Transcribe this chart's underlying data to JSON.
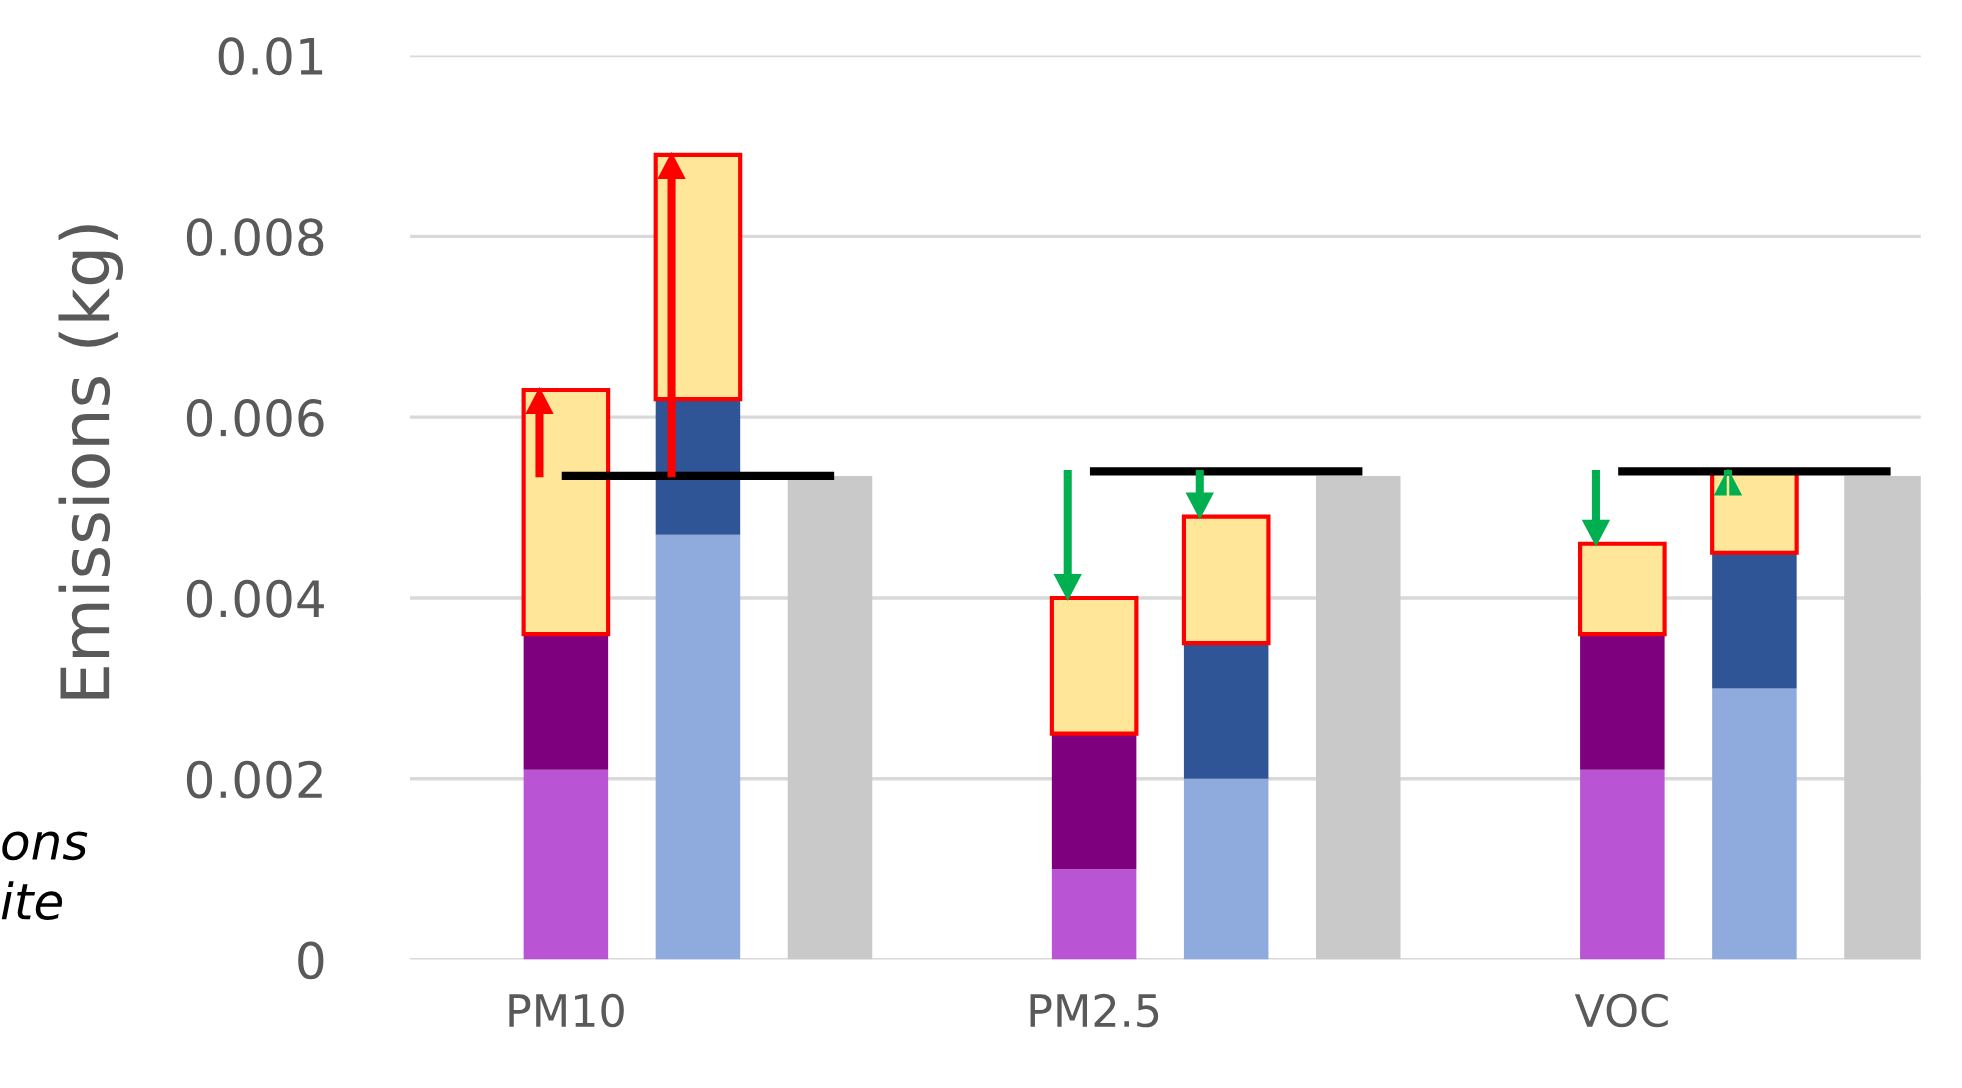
{
  "chart_data": {
    "type": "bar",
    "stacked": true,
    "ylabel": "Emissions (kg)",
    "categories": [
      "PM10",
      null,
      null,
      null,
      "PM2.5",
      null,
      null,
      null,
      "VOC",
      null,
      null
    ],
    "series": [
      {
        "values": [
          0.0021,
          0.0047,
          0.00535,
          null,
          0.001,
          0.002,
          0.00535,
          null,
          0.0021,
          0.003,
          0.00535
        ],
        "colors": [
          "#b955d4",
          "#8faadc",
          "#c9c9c9",
          null,
          "#b955d4",
          "#8faadc",
          "#c9c9c9",
          null,
          "#b955d4",
          "#8faadc",
          "#c9c9c9"
        ]
      },
      {
        "values": [
          0.0015,
          0.0015,
          null,
          null,
          0.0015,
          0.0015,
          null,
          null,
          0.0015,
          0.0015,
          null
        ],
        "colors": [
          "#7f007f",
          "#2f5597",
          null,
          null,
          "#7f007f",
          "#2f5597",
          null,
          null,
          "#7f007f",
          "#2f5597",
          null
        ]
      },
      {
        "values": [
          0.0027,
          0.0027,
          null,
          null,
          0.0015,
          0.0014,
          null,
          null,
          0.001,
          0.0009,
          null
        ],
        "color": "#ffe699"
      },
      {
        "type": "line",
        "color": "#000000",
        "values": [
          0.00535,
          0.00535,
          0.00535,
          null,
          null,
          null,
          null,
          null,
          null,
          null,
          null
        ]
      },
      {
        "type": "line",
        "color": "#000000",
        "values": [
          null,
          null,
          null,
          null,
          0.0054,
          0.0054,
          0.0054,
          null,
          null,
          null,
          null
        ]
      },
      {
        "type": "line",
        "color": "#000000",
        "values": [
          null,
          null,
          null,
          null,
          null,
          null,
          null,
          null,
          0.0054,
          0.0054,
          0.0054
        ]
      }
    ],
    "ylim": [
      0,
      0.01
    ],
    "yticks": [
      0,
      0.002,
      0.004,
      0.006,
      0.008,
      0.01
    ],
    "grid": "y",
    "annotations": [
      "ons",
      "ite"
    ]
  }
}
